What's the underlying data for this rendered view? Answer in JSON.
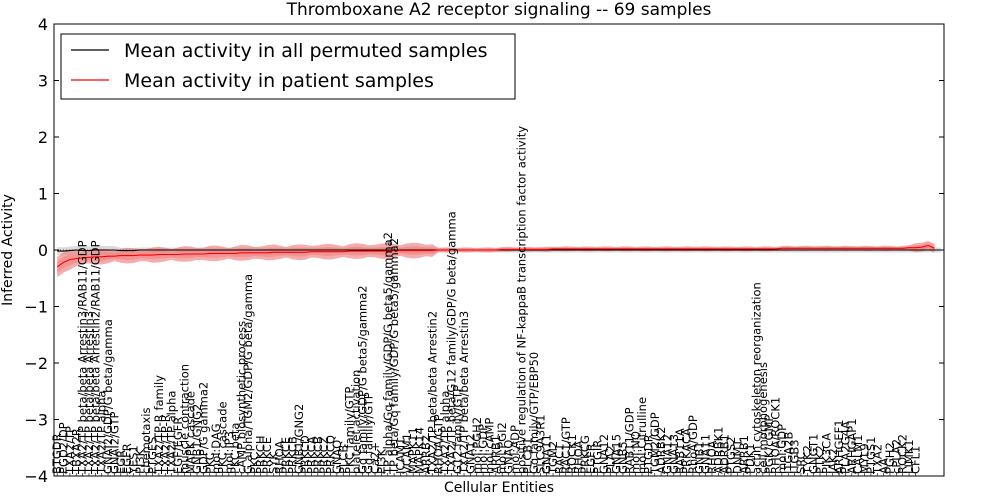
{
  "chart_data": {
    "type": "line",
    "title": "Thromboxane A2 receptor signaling -- 69 samples",
    "xlabel": "Cellular Entities",
    "ylabel": "Inferred Activity",
    "ylim": [
      -4,
      4
    ],
    "yticks": [
      -4,
      -3,
      -2,
      -1,
      0,
      1,
      2,
      3,
      4
    ],
    "legend_position": "top-left",
    "colors": {
      "permuted": "#000000",
      "patient": "#ff0000",
      "permuted_band": "#b0b0b0",
      "patient_band": "#f08080"
    },
    "series": [
      {
        "name": "Mean activity in all permuted samples",
        "color": "#000000",
        "values": [
          -0.02,
          -0.02,
          -0.01,
          0.0,
          -0.01,
          -0.01,
          0.0,
          0.0,
          0.0,
          0.0,
          -0.01,
          -0.01,
          -0.01,
          0.0,
          0.0,
          0.0,
          0.0,
          0.0,
          0.0,
          0.0,
          0.0,
          0.0,
          0.0,
          0.0,
          0.0,
          0.0,
          0.0,
          0.0,
          0.0,
          0.0,
          0.0,
          0.0,
          0.0,
          0.0,
          0.0,
          0.0,
          0.0,
          0.0,
          0.0,
          0.0,
          0.0,
          0.0,
          0.0,
          0.0,
          0.0,
          0.0,
          0.0,
          0.0,
          0.0,
          0.0,
          0.0,
          0.0,
          0.0,
          0.0,
          0.0,
          0.0,
          0.0,
          0.0,
          0.0,
          0.0,
          0.0,
          0.0,
          0.0,
          0.0,
          0.0,
          0.0,
          0.0,
          0.0,
          0.0,
          0.0,
          0.0,
          0.0,
          0.0,
          0.0,
          0.0,
          0.0,
          0.0,
          0.0,
          0.0,
          0.0,
          0.0,
          0.0,
          0.0,
          0.0,
          0.0,
          0.0,
          0.0,
          0.0,
          0.0,
          0.0,
          0.0,
          0.0,
          0.0,
          0.0,
          0.0,
          0.0,
          0.0,
          0.0,
          0.0,
          0.0,
          0.0,
          0.0,
          0.0,
          0.0,
          0.0,
          0.0,
          0.0,
          0.0,
          0.0,
          0.0,
          0.0,
          0.0,
          0.0,
          0.0,
          0.0,
          0.0,
          0.0,
          0.0,
          0.0,
          0.0,
          0.0,
          0.0,
          0.0,
          0.0,
          0.0,
          0.0,
          0.0,
          0.0,
          0.0,
          0.0,
          0.0,
          0.0,
          0.0,
          0.0,
          0.0,
          0.0,
          0.0,
          0.0,
          0.0,
          0.0
        ]
      },
      {
        "name": "Mean activity in patient samples",
        "color": "#ff0000",
        "values": [
          -0.3,
          -0.22,
          -0.17,
          -0.15,
          -0.14,
          -0.13,
          -0.12,
          -0.12,
          -0.11,
          -0.11,
          -0.1,
          -0.1,
          -0.1,
          -0.09,
          -0.09,
          -0.09,
          -0.08,
          -0.08,
          -0.08,
          -0.08,
          -0.07,
          -0.07,
          -0.07,
          -0.07,
          -0.06,
          -0.06,
          -0.06,
          -0.06,
          -0.06,
          -0.05,
          -0.05,
          -0.05,
          -0.05,
          -0.05,
          -0.04,
          -0.04,
          -0.04,
          -0.04,
          -0.04,
          -0.04,
          -0.03,
          -0.03,
          -0.03,
          -0.03,
          -0.03,
          -0.03,
          -0.02,
          -0.02,
          -0.02,
          -0.02,
          -0.02,
          -0.02,
          -0.02,
          -0.01,
          -0.01,
          -0.01,
          -0.01,
          -0.01,
          -0.01,
          -0.01,
          0.0,
          0.0,
          0.0,
          0.0,
          0.0,
          0.0,
          0.0,
          0.0,
          0.0,
          0.0,
          0.01,
          0.01,
          0.01,
          0.01,
          0.01,
          0.01,
          0.01,
          0.01,
          0.02,
          0.02,
          0.02,
          0.02,
          0.02,
          0.02,
          0.02,
          0.02,
          0.02,
          0.02,
          0.02,
          0.02,
          0.02,
          0.02,
          0.02,
          0.02,
          0.02,
          0.02,
          0.02,
          0.02,
          0.02,
          0.02,
          0.02,
          0.02,
          0.02,
          0.02,
          0.02,
          0.02,
          0.02,
          0.02,
          0.02,
          0.02,
          0.02,
          0.02,
          0.02,
          0.02,
          0.03,
          0.03,
          0.03,
          0.03,
          0.03,
          0.03,
          0.03,
          0.03,
          0.03,
          0.03,
          0.03,
          0.03,
          0.03,
          0.03,
          0.03,
          0.03,
          0.03,
          0.03,
          0.03,
          0.03,
          0.04,
          0.04,
          0.05,
          0.08,
          0.03
        ]
      }
    ],
    "tick_labels": [
      "BTGDR",
      "PGD2/DP",
      "TXA2/TP",
      "TBXA2R",
      "TXA2/TP beta/beta Arrestin3/RAB11/GDP",
      "TXA2/TP beta/beta Arrestin3",
      "TXA2/TP beta/beta Arrestin2/RAB11/GDP",
      "TXA2/TP alpha",
      "GNAI2/GDP/G beta/gamma",
      "GNAI2/GTP",
      "EGR",
      "EGFR",
      "YES1",
      "PI3K",
      "chemotaxis",
      "PTGES",
      "TXA2/TP-R family",
      "TXA2/TP-R",
      "TXA2/TP alpha",
      "EGF/EGFR",
      "muscle contraction",
      "MAPK cascade",
      "GNB1/GNG2",
      "GDP/G gamma2",
      "PKC",
      "mol:DAG",
      "PKC cascade",
      "mol:IP3",
      "PKC beta",
      "cAMP biosynthetic process",
      "G alpha/TGM2/GDP/G beta/gamma",
      "PKC",
      "PRKCH",
      "PRKCE",
      "SYK",
      "RHOA",
      "PRKCE",
      "PRKCB",
      "GNB1/GNG2",
      "PRKCD",
      "PRKCA",
      "PRKCB",
      "PRKCZ",
      "PRKCQ",
      "GNAQ",
      "PLCB",
      "PKC family/GTP",
      "platelet activation",
      "Gq family/GDP/G beta5/gamma2",
      "Gq family/GTP",
      "Ca2+",
      "PI3K",
      "TP alpha/Gq family/GDP/G beta5/gamma2",
      "TP beta/Gq family/GDP/G beta5/gamma2",
      "ICAM1",
      "VCAM1",
      "MAPK11",
      "MAPK14",
      "ARRB2",
      "TXA2/TP beta/beta Arrestin2",
      "RHOA/GTP",
      "TXA2/TP alpha",
      "TXA2/TP beta/G12 family/GDP/G beta/gamma",
      "G12 family/GTP",
      "TXA2/TP beta/beta Arrestin3",
      "GNA12",
      "mol:PGH2",
      "mol:GDP",
      "mol:cAMP",
      "ARRB1",
      "mol:PGI2",
      "GNAQ",
      "mol:ADP",
      "positive regulation of NF-kappaB transcription factor activity",
      "PLCB1",
      "Gq family/GTP/EBP50",
      "SLC9A3R1",
      "GNA11",
      "TGM2",
      "RAC1",
      "RAC1/GTP",
      "ROCK1",
      "RHOA",
      "PRKCG",
      "EGFR",
      "PTGIR",
      "GNA12",
      "PLA2",
      "GNA15",
      "GNB5",
      "RAB11/GDP",
      "mol:NO",
      "mol:Citrulline",
      "PTGDR",
      "TGM2/GDP",
      "ADRBK2",
      "GNA12",
      "GNA13",
      "RAB11A",
      "PRKACA",
      "RhoA/GDP",
      "GNB1",
      "GNA11",
      "RHOA",
      "ADRBK1",
      "ADRB1",
      "PTGS2",
      "DNM1",
      "ARRB1",
      "PDK1",
      "actin cytoskeleton reorganization",
      "cell morphogenesis",
      "PGK/cGMP",
      "RHOA/ROCK1",
      "mol:GDP",
      "ITGA2B",
      "ITGB3",
      "SRC",
      "TYK2",
      "GNGT1",
      "PTK2",
      "PIK3CA",
      "JAK2",
      "ARHGEF1",
      "PLA2G4A",
      "ARHGAP1",
      "CALM1",
      "MYL9",
      "PTGS1",
      "TXA2",
      "AA",
      "PGH2",
      "cPLA2",
      "ROCK2",
      "LIMK1",
      "CFL1"
    ]
  }
}
